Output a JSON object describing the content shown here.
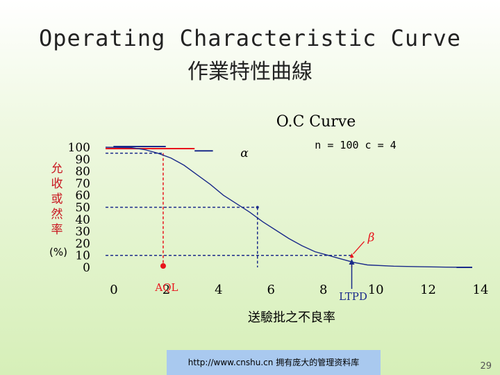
{
  "slide": {
    "title_en": "Operating Characteristic Curve",
    "title_zh": "作業特性曲線",
    "footer": "http://www.cnshu.cn  拥有庞大的管理资料库",
    "page_number": "29"
  },
  "chart_data": {
    "type": "line",
    "title": "O.C Curve",
    "params": "n = 100  c = 4",
    "ylabel": "允收或然率(%)",
    "xlabel": "送驗批之不良率",
    "xlim": [
      0,
      14
    ],
    "ylim": [
      0,
      100
    ],
    "x_ticks": [
      "0",
      "2",
      "4",
      "6",
      "8",
      "10",
      "12",
      "14"
    ],
    "y_ticks": [
      "100",
      "90",
      "80",
      "70",
      "60",
      "50",
      "40",
      "30",
      "20",
      "10",
      "0"
    ],
    "series": [
      {
        "x": [
          0,
          0.5,
          1,
          1.5,
          2,
          2.5,
          3,
          3.5,
          4,
          4.5,
          5,
          5.5,
          6,
          6.5,
          7,
          7.5,
          8,
          8.5,
          9,
          9.5,
          10,
          11,
          12,
          13,
          14
        ],
        "y": [
          100,
          99.8,
          99.6,
          98,
          95,
          91,
          85,
          77,
          69,
          60,
          53,
          46,
          38,
          31,
          24,
          18,
          13,
          10,
          7,
          4,
          2,
          1,
          0.5,
          0.2,
          0
        ]
      }
    ],
    "annotations": {
      "aql_label": "AQL",
      "ltpd_label": "LTPD",
      "alpha_label": "α",
      "beta_label": "β",
      "aql_x": 2.2,
      "aql_y": 95,
      "ltpd_x": 9.4,
      "ltpd_y": 10,
      "mid_x": 5.8,
      "mid_y": 50
    },
    "colors": {
      "curve": "#1a2a8a",
      "aql_marker": "#e8141c",
      "ltpd_marker": "#1a2a8a",
      "dashed": "#1a2a8a"
    }
  }
}
